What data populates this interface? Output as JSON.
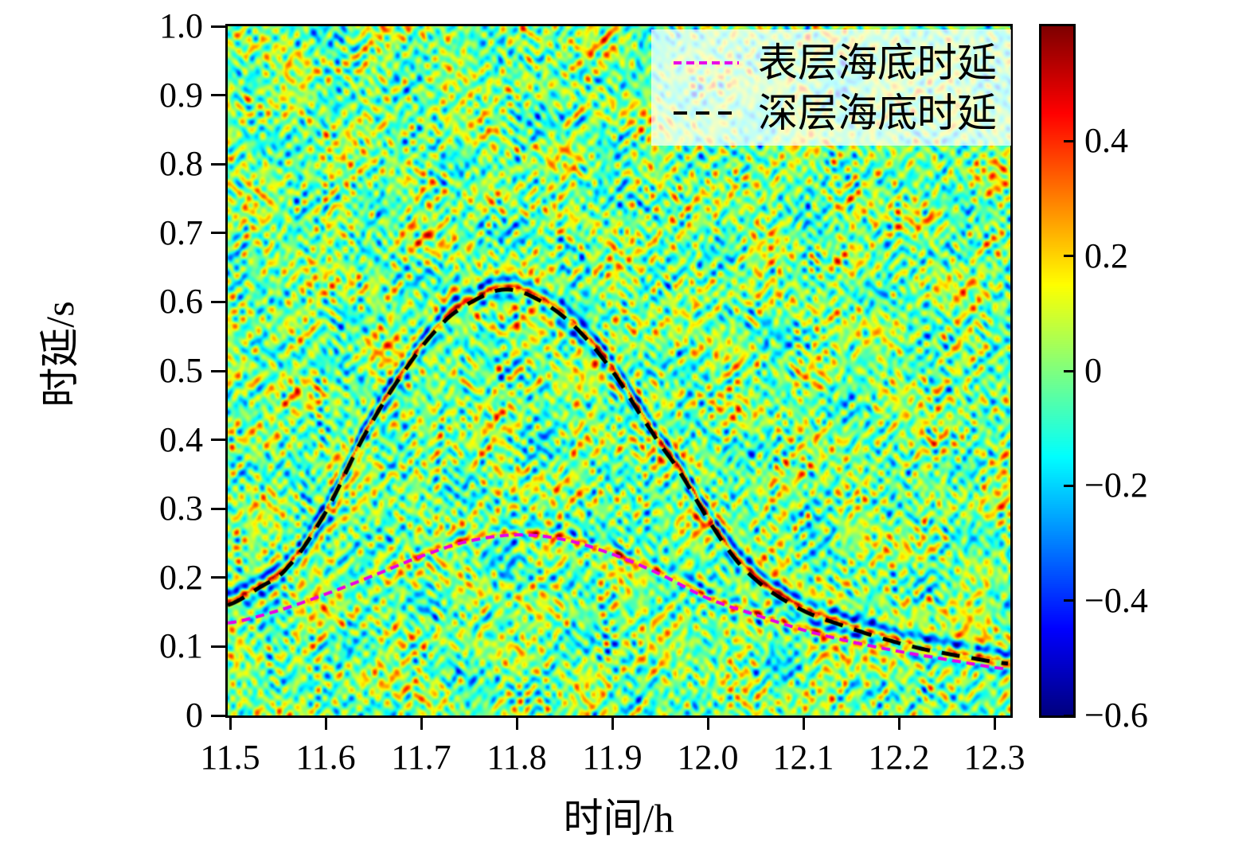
{
  "chart_data": {
    "type": "heatmap",
    "title": "",
    "xlabel": "时间/h",
    "ylabel": "时延/s",
    "xlim": [
      11.497,
      12.317
    ],
    "ylim": [
      0,
      1.0
    ],
    "grid": false,
    "colormap": "jet",
    "x_ticks": {
      "values": [
        11.5,
        11.6,
        11.7,
        11.8,
        11.9,
        12.0,
        12.1,
        12.2,
        12.3
      ],
      "labels": [
        "11.5",
        "11.6",
        "11.7",
        "11.8",
        "11.9",
        "12.0",
        "12.1",
        "12.2",
        "12.3"
      ]
    },
    "y_ticks": {
      "values": [
        0,
        0.1,
        0.2,
        0.3,
        0.4,
        0.5,
        0.6,
        0.7,
        0.8,
        0.9,
        1.0
      ],
      "labels": [
        "0",
        "0.1",
        "0.2",
        "0.3",
        "0.4",
        "0.5",
        "0.6",
        "0.7",
        "0.8",
        "0.9",
        "1.0"
      ]
    },
    "colorbar": {
      "vmin": -0.6,
      "vmax": 0.6,
      "ticks": {
        "values": [
          0.4,
          0.2,
          0,
          -0.2,
          -0.4,
          -0.6
        ],
        "labels": [
          "0.4",
          "0.2",
          "0",
          "−0.2",
          "−0.4",
          "−0.6"
        ]
      }
    },
    "background_value": 0,
    "series": [
      {
        "name": "表层海底时延",
        "color": "#E800E8",
        "line_style": "dashed",
        "x": [
          11.497,
          11.55,
          11.6,
          11.65,
          11.7,
          11.75,
          11.8,
          11.85,
          11.9,
          11.95,
          12.0,
          12.05,
          12.1,
          12.15,
          12.2,
          12.25,
          12.317
        ],
        "y": [
          0.134,
          0.152,
          0.176,
          0.203,
          0.231,
          0.253,
          0.262,
          0.255,
          0.234,
          0.205,
          0.17,
          0.146,
          0.124,
          0.107,
          0.093,
          0.081,
          0.067
        ]
      },
      {
        "name": "深层海底时延",
        "color": "#000000",
        "line_style": "dashed",
        "x": [
          11.497,
          11.53,
          11.56,
          11.6,
          11.64,
          11.68,
          11.72,
          11.75,
          11.786,
          11.82,
          11.86,
          11.9,
          11.94,
          11.97,
          12.0,
          12.03,
          12.06,
          12.1,
          12.14,
          12.18,
          12.22,
          12.26,
          12.317
        ],
        "y": [
          0.16,
          0.185,
          0.215,
          0.295,
          0.405,
          0.495,
          0.565,
          0.598,
          0.618,
          0.605,
          0.565,
          0.5,
          0.415,
          0.355,
          0.285,
          0.225,
          0.185,
          0.152,
          0.131,
          0.113,
          0.098,
          0.087,
          0.075
        ]
      }
    ],
    "peaks": {
      "deep_peak": {
        "x": 11.786,
        "y": 0.618
      },
      "surface_peak": {
        "x": 11.79,
        "y": 0.262
      }
    },
    "legend": {
      "position": "upper-right",
      "entries": [
        {
          "label": "表层海底时延",
          "color": "#E800E8",
          "dash": [
            10,
            6
          ],
          "width": 4
        },
        {
          "label": "深层海底时延",
          "color": "#000000",
          "dash": [
            17,
            11
          ],
          "width": 4
        }
      ]
    }
  }
}
